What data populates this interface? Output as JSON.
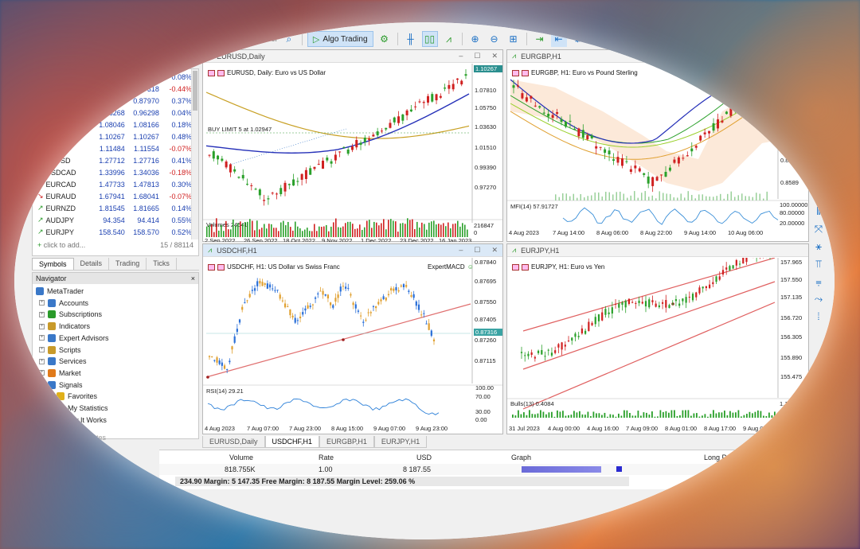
{
  "toolbar": {
    "algo_trading_label": "Algo Trading",
    "partial_label": "er"
  },
  "market_watch": {
    "rows": [
      {
        "symbol": "",
        "bid": "",
        "ask": "",
        "change": "0.08%",
        "dir": "up"
      },
      {
        "symbol": "",
        "bid": "",
        "ask": "7318",
        "change": "-0.44%",
        "dir": "dn"
      },
      {
        "symbol": "",
        "bid": "87",
        "ask": "0.87970",
        "change": "0.37%",
        "dir": "up"
      },
      {
        "symbol": "",
        "bid": "0.96268",
        "ask": "0.96298",
        "change": "0.04%",
        "dir": "up"
      },
      {
        "symbol": "",
        "bid": "1.08046",
        "ask": "1.08166",
        "change": "0.18%",
        "dir": "up"
      },
      {
        "symbol": "",
        "bid": "1.10267",
        "ask": "1.10267",
        "change": "0.48%",
        "dir": "dn_price"
      },
      {
        "symbol": "CHF",
        "bid": "1.11484",
        "ask": "1.11554",
        "change": "-0.07%",
        "dir": "dn"
      },
      {
        "symbol": "BPUSD",
        "bid": "1.27712",
        "ask": "1.27716",
        "change": "0.41%",
        "dir": "up"
      },
      {
        "symbol": "USDCAD",
        "bid": "1.33996",
        "ask": "1.34036",
        "change": "-0.18%",
        "dir": "dn"
      },
      {
        "symbol": "EURCAD",
        "bid": "1.47733",
        "ask": "1.47813",
        "change": "0.30%",
        "dir": "up"
      },
      {
        "symbol": "EURAUD",
        "bid": "1.67941",
        "ask": "1.68041",
        "change": "-0.07%",
        "dir": "dn"
      },
      {
        "symbol": "EURNZD",
        "bid": "1.81545",
        "ask": "1.81665",
        "change": "0.14%",
        "dir": "up_red"
      },
      {
        "symbol": "AUDJPY",
        "bid": "94.354",
        "ask": "94.414",
        "change": "0.55%",
        "dir": "up_red"
      },
      {
        "symbol": "EURJPY",
        "bid": "158.540",
        "ask": "158.570",
        "change": "0.52%",
        "dir": "up"
      }
    ],
    "add_label": "click to add...",
    "count": "15 / 88114"
  },
  "left_tabs": [
    "Symbols",
    "Details",
    "Trading",
    "Ticks"
  ],
  "navigator": {
    "title": "Navigator",
    "close": "×",
    "items": [
      {
        "label": "MetaTrader",
        "icon_color": "#3a78c8"
      },
      {
        "label": "Accounts",
        "icon_color": "#3a78c8"
      },
      {
        "label": "Subscriptions",
        "icon_color": "#2a9a2a"
      },
      {
        "label": "Indicators",
        "icon_color": "#c89a2a"
      },
      {
        "label": "Expert Advisors",
        "icon_color": "#3a78c8"
      },
      {
        "label": "Scripts",
        "icon_color": "#c89a2a"
      },
      {
        "label": "Services",
        "icon_color": "#3a78c8"
      },
      {
        "label": "Market",
        "icon_color": "#e07a1a"
      },
      {
        "label": "Signals",
        "icon_color": "#3a78c8"
      },
      {
        "label": "Favorites",
        "icon_color": "#e0b01a"
      },
      {
        "label": "My Statistics",
        "icon_color": "#3a78c8"
      },
      {
        "label": "low It Works",
        "icon_color": "#3a78c8"
      }
    ],
    "bottom_partial": "tes"
  },
  "charts": {
    "eurusd": {
      "title": "EURUSD,Daily",
      "label": "EURUSD, Daily:  Euro vs US Dollar",
      "order_label": "BUY LIMIT 5 at 1.02947",
      "price_tag": "1.10267",
      "prices": [
        "1.07810",
        "1.05750",
        "1.03630",
        "1.01510",
        "0.99390",
        "0.97270"
      ],
      "volumes_label": "Volumes 24541",
      "volume_value": "216847",
      "volume_zero": "0",
      "dates": [
        "2 Sep 2022",
        "26 Sep 2022",
        "18 Oct 2022",
        "9 Nov 2022",
        "1 Dec 2022",
        "23 Dec 2022",
        "16 Jan 2023"
      ]
    },
    "eurgbp": {
      "title": "EURGBP,H1",
      "label": "EURGBP, H1:  Euro vs Pound Sterling",
      "prices": [
        "0.860",
        "0.8599",
        "0.8589"
      ],
      "mfi_label": "MFI(14) 57.91727",
      "mfi_vals": [
        "100.00000",
        "80.00000",
        "20.00000"
      ],
      "dates": [
        "4 Aug 2023",
        "7 Aug 14:00",
        "8 Aug 06:00",
        "8 Aug 22:00",
        "9 Aug 14:00",
        "10 Aug 06:00"
      ]
    },
    "usdchf": {
      "title": "USDCHF,H1",
      "label": "USDCHF, H1:  US Dollar vs Swiss Franc",
      "expert": "ExpertMACD",
      "price_tag": "0.87316",
      "prices": [
        "0.87840",
        "0.87695",
        "0.87550",
        "0.87405",
        "0.87260",
        "0.87115"
      ],
      "rsi_label": "RSI(14) 29.21",
      "rsi_vals": [
        "100.00",
        "70.00",
        "30.00",
        "0.00"
      ],
      "dates": [
        "4 Aug 2023",
        "7 Aug 07:00",
        "7 Aug 23:00",
        "8 Aug 15:00",
        "9 Aug 07:00",
        "9 Aug 23:00"
      ]
    },
    "eurjpy": {
      "title": "EURJPY,H1",
      "label": "EURJPY, H1:  Euro vs Yen",
      "prices": [
        "157.965",
        "157.550",
        "157.135",
        "156.720",
        "156.305",
        "155.890",
        "155.475"
      ],
      "bulls_label": "Bulls(13) 0.4084",
      "bulls_vals": [
        "1.1765",
        "0.0"
      ],
      "dates": [
        "31 Jul 2023",
        "4 Aug 00:00",
        "4 Aug 16:00",
        "7 Aug 09:00",
        "8 Aug 01:00",
        "8 Aug 17:00",
        "9 Aug 09:00"
      ]
    }
  },
  "chart_tabs": [
    "EURUSD,Daily",
    "USDCHF,H1",
    "EURGBP,H1",
    "EURJPY,H1"
  ],
  "trade": {
    "headers": [
      "Volume",
      "Rate",
      "USD",
      "Graph",
      "Long P"
    ],
    "row": [
      "818.755K",
      "1.00",
      "8 187.55"
    ],
    "footer": "234.90  Margin: 5 147.35  Free Margin: 8 187.55  Margin Level: 259.06 %"
  }
}
